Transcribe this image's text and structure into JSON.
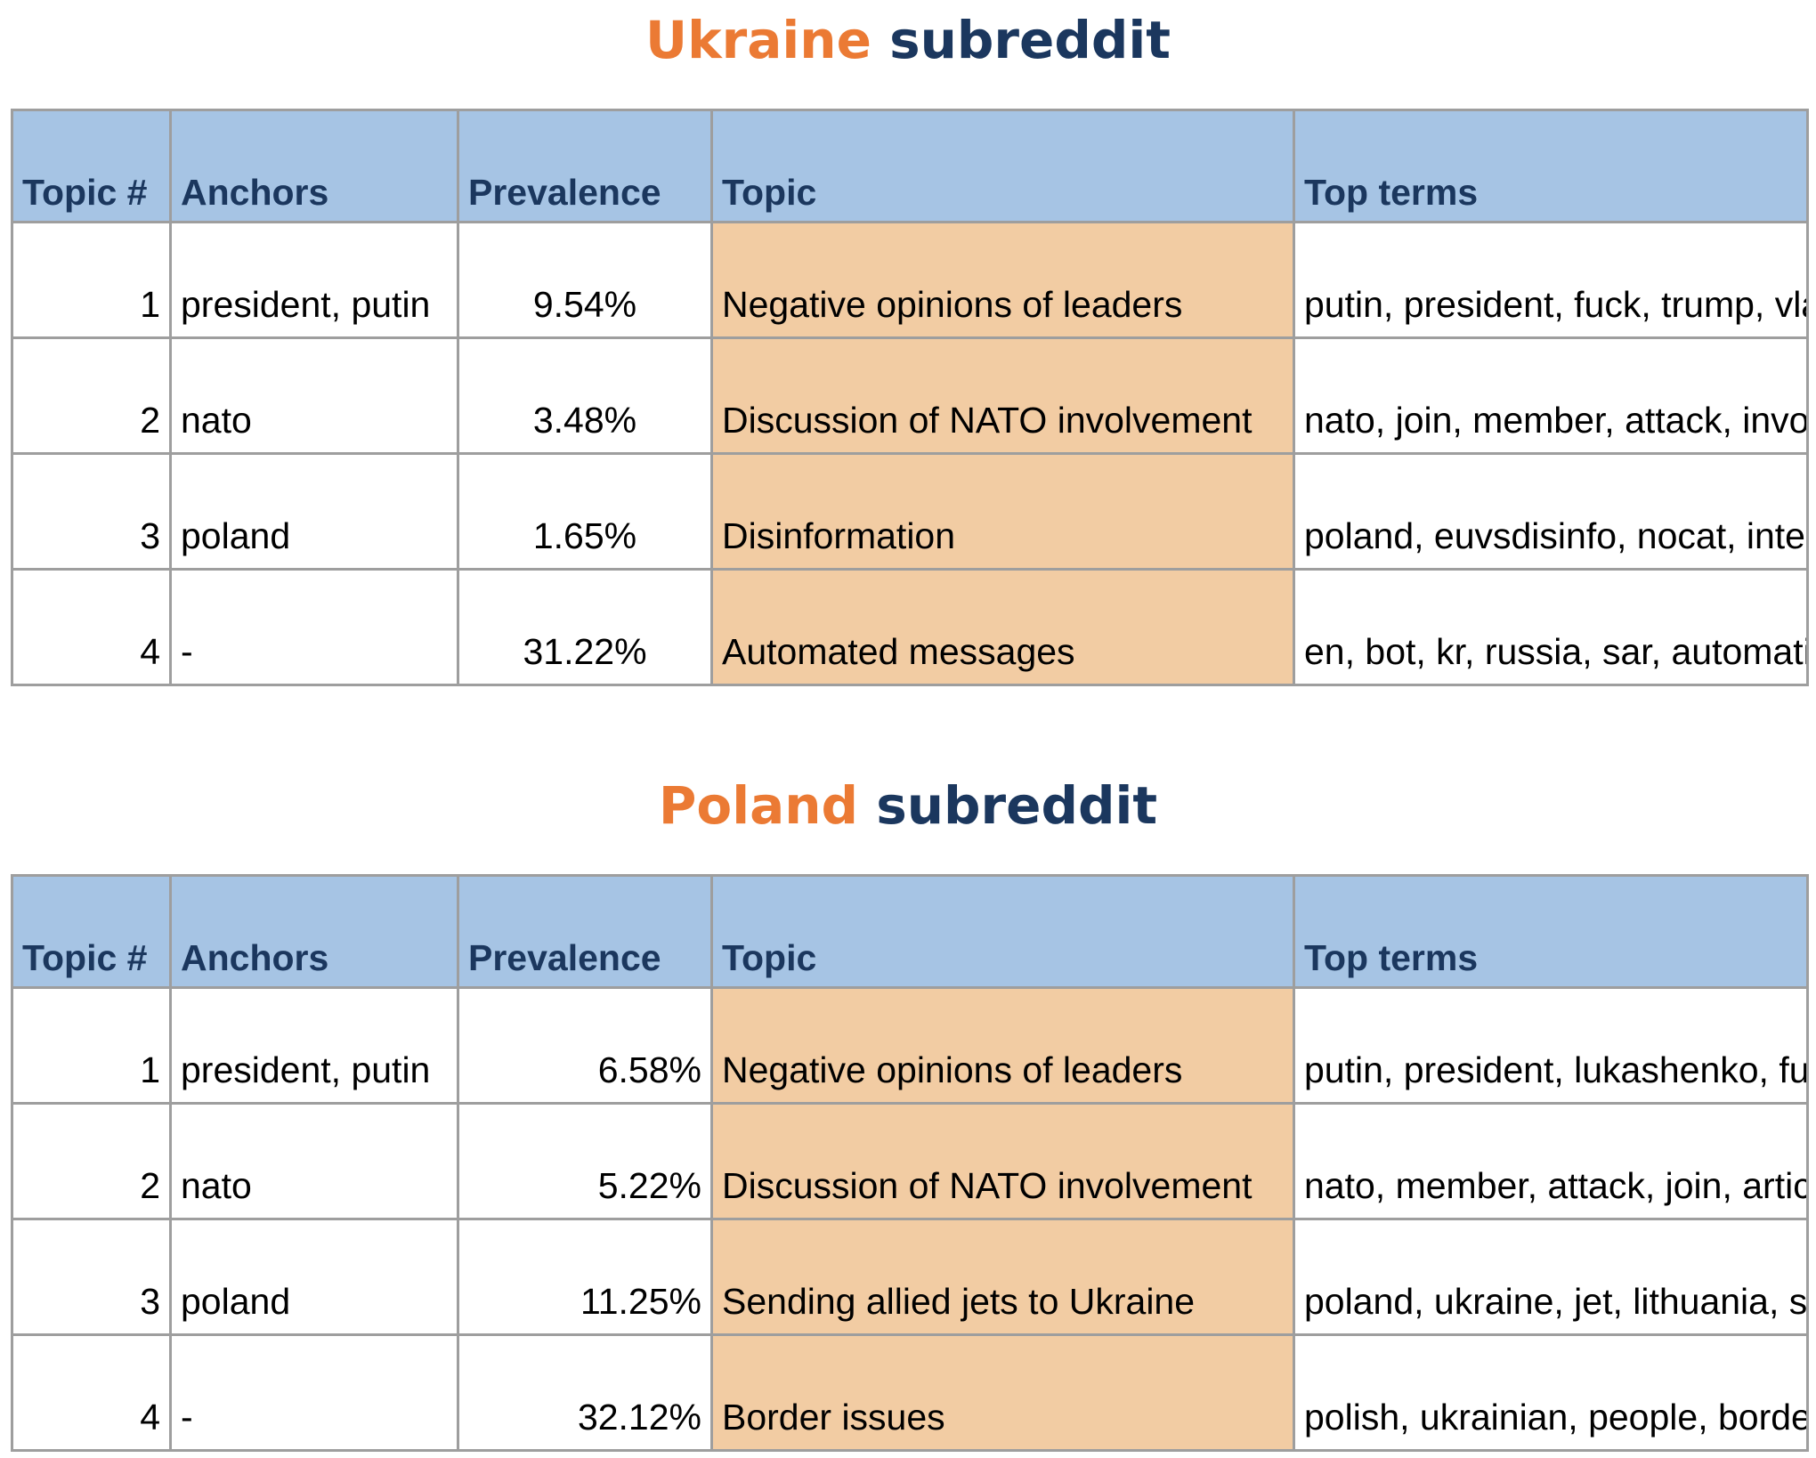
{
  "ukraine": {
    "heading_country": "Ukraine",
    "heading_rest": " subreddit",
    "headers": [
      "Topic #",
      "Anchors",
      "Prevalence",
      "Topic",
      "Top terms"
    ],
    "rows": [
      {
        "num": "1",
        "anchors": "president, putin",
        "prevalence": "9.54%",
        "topic": "Negative opinions of leaders",
        "terms": "putin, president, fuck, trump, vladimir, biden"
      },
      {
        "num": "2",
        "anchors": "nato",
        "prevalence": "3.48%",
        "topic": "Discussion of NATO involvement",
        "terms": "nato, join, member, attack, involve, alliance"
      },
      {
        "num": "3",
        "anchors": "poland",
        "prevalence": "1.65%",
        "topic": "Disinformation",
        "terms": "poland, euvsdisinfo, nocat, interactive, ist, leben"
      },
      {
        "num": "4",
        "anchors": "-",
        "prevalence": "31.22%",
        "topic": "Automated messages",
        "terms": "en, bot, kr, russia, sar, automatically"
      }
    ]
  },
  "poland": {
    "heading_country": "Poland",
    "heading_rest": " subreddit",
    "headers": [
      "Topic #",
      "Anchors",
      "Prevalence",
      "Topic",
      "Top terms"
    ],
    "rows": [
      {
        "num": "1",
        "anchors": "president, putin",
        "prevalence": "6.58%",
        "topic": "Negative opinions of leaders",
        "terms": "putin, president, lukashenko, fuck, pro, trump"
      },
      {
        "num": "2",
        "anchors": "nato",
        "prevalence": "5.22%",
        "topic": "Discussion of NATO involvement",
        "terms": "nato, member, attack, join, article, alliance"
      },
      {
        "num": "3",
        "anchors": "poland",
        "prevalence": "11.25%",
        "topic": "Sending allied jets to Ukraine",
        "terms": "poland, ukraine, jet, lithuania, slovakia, valid,"
      },
      {
        "num": "4",
        "anchors": "-",
        "prevalence": "32.12%",
        "topic": "Border issues",
        "terms": "polish, ukrainian, people, border, refugee, russian"
      }
    ]
  },
  "colors": {
    "heading_accent": "#eb7a34",
    "heading_dark": "#1b375e",
    "header_fill": "#a6c4e4",
    "topic_fill": "#f2cca3",
    "grid": "#9e9e9e"
  }
}
